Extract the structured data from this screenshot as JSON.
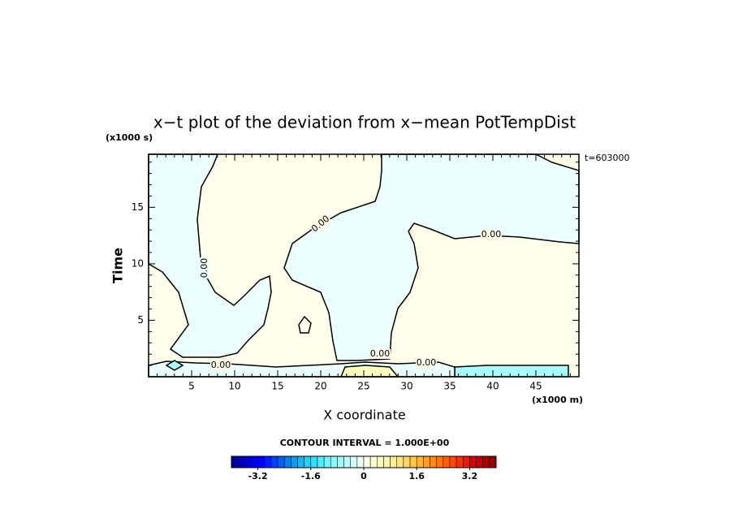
{
  "chart_data": {
    "type": "contour",
    "title": "x−t plot of the deviation from x−mean PotTempDist",
    "xlabel": "X coordinate",
    "ylabel": "Time",
    "xunit": "(x1000 m)",
    "yunit": "(x1000 s)",
    "annotation": "t=603000",
    "contour_interval": "CONTOUR INTERVAL = 1.000E+00",
    "xlim": [
      0,
      50
    ],
    "ylim": [
      0,
      19.7
    ],
    "xticks": [
      5,
      10,
      15,
      20,
      25,
      30,
      35,
      40,
      45
    ],
    "yticks": [
      5,
      10,
      15
    ],
    "xminorticks": [
      1,
      2,
      3,
      4,
      6,
      7,
      8,
      9,
      11,
      12,
      13,
      14,
      16,
      17,
      18,
      19,
      21,
      22,
      23,
      24,
      26,
      27,
      28,
      29,
      31,
      32,
      33,
      34,
      36,
      37,
      38,
      39,
      41,
      42,
      43,
      44,
      46,
      47,
      48,
      49
    ],
    "yminorticks": [
      1,
      2,
      3,
      4,
      6,
      7,
      8,
      9,
      11,
      12,
      13,
      14,
      16,
      17,
      18,
      19
    ],
    "contour_labels": [
      "0.00",
      "0.00",
      "0.00",
      "0.00",
      "0.00",
      "0.00"
    ],
    "colorbar": {
      "lim": [
        -4,
        4
      ],
      "ticks": [
        -3.2,
        -1.6,
        0,
        1.6,
        3.2
      ],
      "colors": [
        "#00009c",
        "#0000b4",
        "#0000cc",
        "#0000e4",
        "#0000ff",
        "#0020ff",
        "#0040ff",
        "#0060ff",
        "#0080ff",
        "#00a0ff",
        "#10b8ff",
        "#20d0ff",
        "#30e0ff",
        "#50ecff",
        "#70f4ff",
        "#90f8ff",
        "#a8fcff",
        "#c0ffff",
        "#d8ffff",
        "#ecffff",
        "#ffffec",
        "#ffffd8",
        "#ffffc0",
        "#fff8a8",
        "#fff090",
        "#ffe478",
        "#ffd860",
        "#ffc848",
        "#ffb430",
        "#ffa020",
        "#ff8c10",
        "#ff7800",
        "#ff6000",
        "#ff4800",
        "#ff3000",
        "#f01800",
        "#e00000",
        "#c80000",
        "#b00000",
        "#980000"
      ]
    }
  }
}
